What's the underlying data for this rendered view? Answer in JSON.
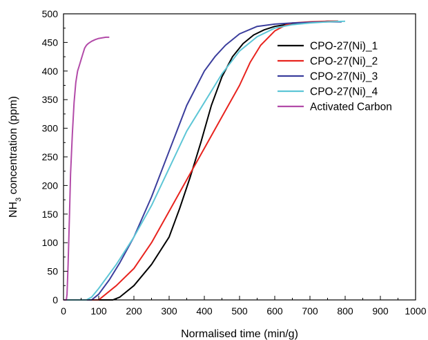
{
  "chart_data": {
    "type": "line",
    "xlabel": "Normalised time (min/g)",
    "ylabel_main": "NH",
    "ylabel_sub": "3",
    "ylabel_rest": " concentration (ppm)",
    "xlim": [
      0,
      1000
    ],
    "ylim": [
      0,
      500
    ],
    "xticks": [
      "0",
      "100",
      "200",
      "300",
      "400",
      "500",
      "600",
      "700",
      "800",
      "900",
      "1000"
    ],
    "yticks": [
      "0",
      "50",
      "100",
      "150",
      "200",
      "250",
      "300",
      "350",
      "400",
      "450",
      "500"
    ],
    "grid": false,
    "legend_position": "top-right",
    "series": [
      {
        "name": "CPO-27(Ni)_1",
        "color": "#000000",
        "x": [
          0,
          140,
          160,
          200,
          250,
          300,
          330,
          360,
          390,
          420,
          450,
          480,
          510,
          540,
          570,
          600,
          650,
          700,
          750,
          780
        ],
        "y": [
          0,
          0,
          5,
          25,
          62,
          110,
          160,
          215,
          275,
          340,
          390,
          425,
          448,
          463,
          472,
          478,
          483,
          485,
          487,
          487
        ]
      },
      {
        "name": "CPO-27(Ni)_2",
        "color": "#e8231e",
        "x": [
          0,
          100,
          120,
          150,
          200,
          250,
          300,
          350,
          400,
          450,
          500,
          530,
          560,
          600,
          630,
          650,
          700,
          750,
          780
        ],
        "y": [
          0,
          0,
          10,
          25,
          55,
          100,
          155,
          210,
          265,
          320,
          375,
          415,
          445,
          470,
          480,
          484,
          486,
          487,
          487
        ]
      },
      {
        "name": "CPO-27(Ni)_3",
        "color": "#3a3d9c",
        "x": [
          0,
          80,
          100,
          130,
          160,
          200,
          250,
          300,
          350,
          400,
          430,
          460,
          500,
          550,
          600,
          650,
          700,
          750,
          790
        ],
        "y": [
          0,
          0,
          10,
          35,
          65,
          110,
          180,
          260,
          340,
          400,
          425,
          445,
          465,
          478,
          482,
          484,
          485,
          486,
          486
        ]
      },
      {
        "name": "CPO-27(Ni)_4",
        "color": "#5dc6d6",
        "x": [
          0,
          65,
          80,
          100,
          150,
          200,
          250,
          300,
          350,
          400,
          450,
          500,
          550,
          600,
          650,
          700,
          750,
          800
        ],
        "y": [
          0,
          0,
          5,
          20,
          62,
          110,
          165,
          230,
          295,
          345,
          395,
          435,
          460,
          475,
          481,
          484,
          486,
          487
        ]
      },
      {
        "name": "Activated Carbon",
        "color": "#b24aa8",
        "x": [
          0,
          8,
          10,
          13,
          17,
          20,
          25,
          30,
          35,
          40,
          45,
          50,
          55,
          60,
          65,
          70,
          80,
          90,
          100,
          110,
          120,
          130
        ],
        "y": [
          0,
          0,
          10,
          60,
          150,
          220,
          290,
          345,
          380,
          400,
          410,
          420,
          430,
          440,
          445,
          448,
          452,
          455,
          457,
          458,
          459,
          459
        ]
      }
    ]
  }
}
